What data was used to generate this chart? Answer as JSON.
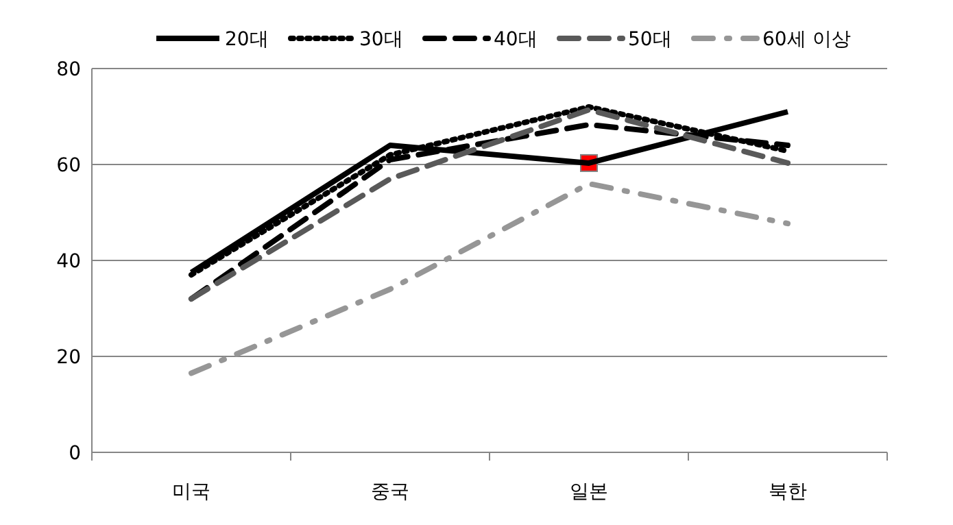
{
  "chart_data": {
    "type": "line",
    "categories": [
      "미국",
      "중국",
      "일본",
      "북한"
    ],
    "series": [
      {
        "name": "20대",
        "color": "#000000",
        "line_style": "solid",
        "values": [
          37.5,
          64,
          60.3,
          71
        ]
      },
      {
        "name": "30대",
        "color": "#000000",
        "line_style": "dotted",
        "values": [
          37,
          62,
          72,
          62.8
        ]
      },
      {
        "name": "40대",
        "color": "#000000",
        "line_style": "dashed",
        "values": [
          32,
          61,
          68.3,
          64
        ]
      },
      {
        "name": "50대",
        "color": "#595959",
        "line_style": "dashed",
        "values": [
          32,
          57,
          71.4,
          60.3
        ]
      },
      {
        "name": "60세 이상",
        "color": "#969696",
        "line_style": "dashdot",
        "values": [
          16.5,
          34,
          56,
          47.7
        ]
      },
      {
        "type": "scatter",
        "color": "#ff0000",
        "marker": "square",
        "x": [
          "일본"
        ],
        "values": [
          60.3
        ]
      }
    ],
    "ylim": [
      0,
      80
    ],
    "yticks": [
      0,
      20,
      40,
      60,
      80
    ],
    "grid": "y",
    "legend": "top",
    "marker": "none"
  }
}
